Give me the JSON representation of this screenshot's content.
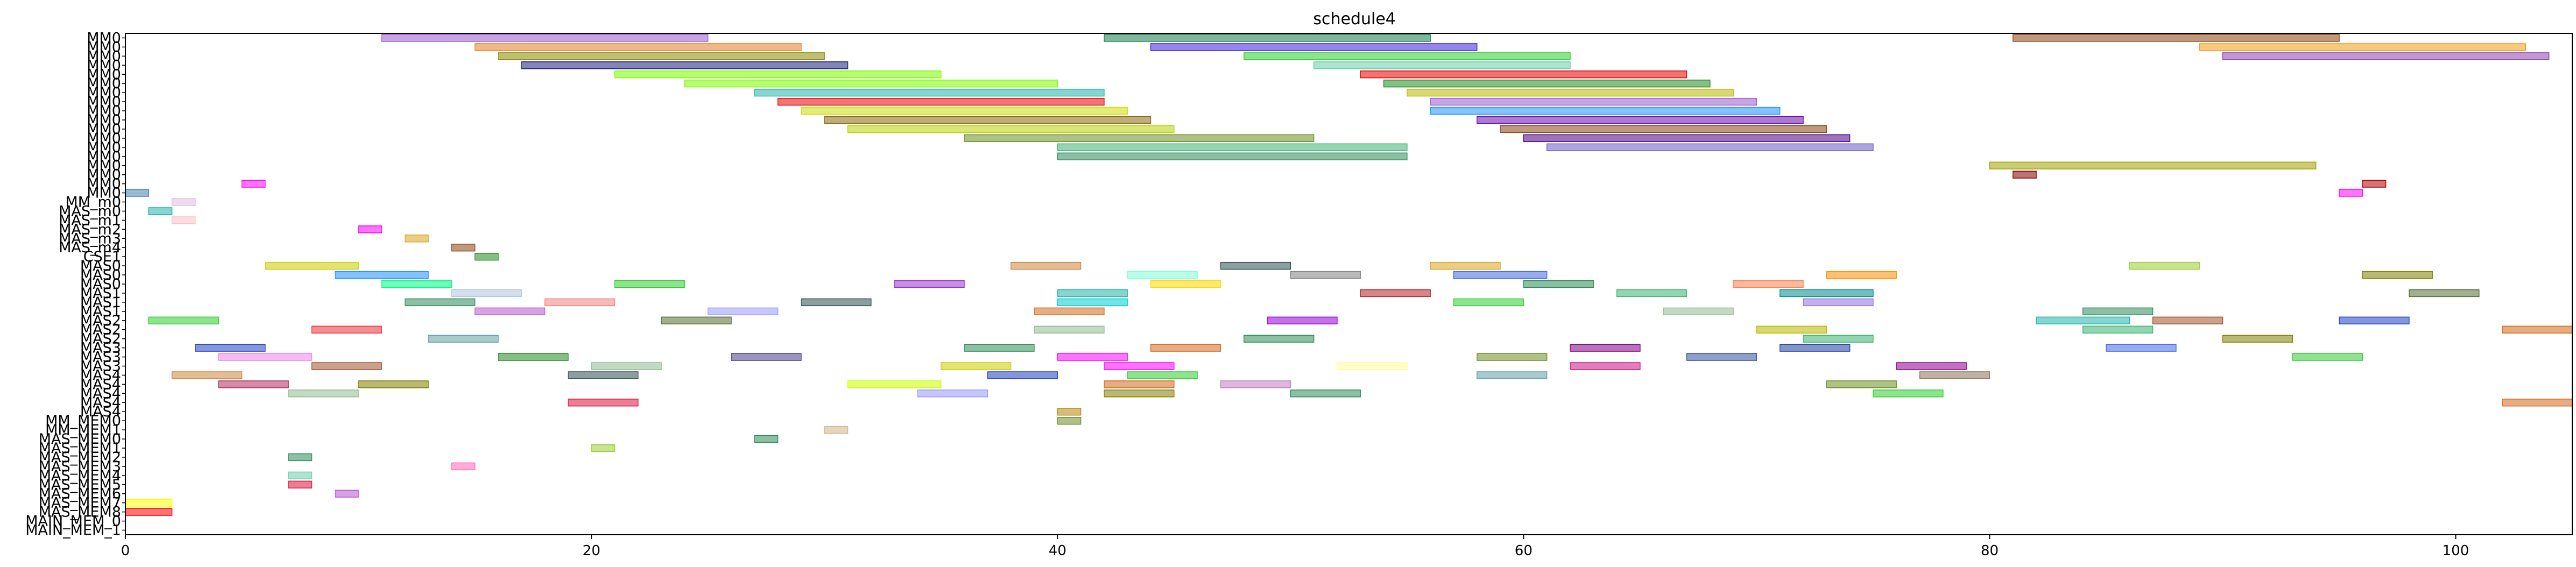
{
  "chart_data": {
    "type": "gantt",
    "title": "schedule4",
    "xlabel": "",
    "ylabel": "",
    "xlim": [
      0,
      105
    ],
    "xticks": [
      0,
      20,
      40,
      60,
      80,
      100
    ],
    "grid": false,
    "legend": "none",
    "rows": [
      "MM0",
      "MM0",
      "MM0",
      "MM0",
      "MM0",
      "MM0",
      "MM0",
      "MM0",
      "MM0",
      "MM0",
      "MM0",
      "MM0",
      "MM0",
      "MM0",
      "MM0",
      "MM0",
      "MM0",
      "MM0",
      "MM_m0",
      "MAS_m0",
      "MAS_m1",
      "MAS_m2",
      "MAS_m3",
      "MAS_m4",
      "CSE1",
      "MAS0",
      "MAS0",
      "MAS0",
      "MAS1",
      "MAS1",
      "MAS1",
      "MAS2",
      "MAS2",
      "MAS2",
      "MAS3",
      "MAS3",
      "MAS3",
      "MAS4",
      "MAS4",
      "MAS4",
      "MAS4",
      "MAS4",
      "MM_MEM0",
      "MM_MEM1",
      "MAS_MEM0",
      "MAS_MEM1",
      "MAS_MEM2",
      "MAS_MEM3",
      "MAS_MEM4",
      "MAS_MEM5",
      "MAS_MEM6",
      "MAS_MEM7",
      "MAS_MEM8",
      "MAIN_MEM_0",
      "MAIN_MEM_1"
    ],
    "tasks": [
      {
        "row": 0,
        "start": 11,
        "end": 25,
        "color": "#9b59d0"
      },
      {
        "row": 0,
        "start": 42,
        "end": 56,
        "color": "#1a7a50"
      },
      {
        "row": 0,
        "start": 81,
        "end": 95,
        "color": "#8b4513"
      },
      {
        "row": 1,
        "start": 15,
        "end": 29,
        "color": "#e67e22"
      },
      {
        "row": 1,
        "start": 44,
        "end": 58,
        "color": "#3b1fe0"
      },
      {
        "row": 1,
        "start": 89,
        "end": 103,
        "color": "#f39c12"
      },
      {
        "row": 2,
        "start": 16,
        "end": 30,
        "color": "#8b8b00"
      },
      {
        "row": 2,
        "start": 48,
        "end": 62,
        "color": "#32cd32"
      },
      {
        "row": 2,
        "start": 90,
        "end": 104,
        "color": "#8e44ad"
      },
      {
        "row": 3,
        "start": 17,
        "end": 31,
        "color": "#1f1f7a"
      },
      {
        "row": 3,
        "start": 51,
        "end": 62,
        "color": "#66cdaa"
      },
      {
        "row": 4,
        "start": 21,
        "end": 35,
        "color": "#7cfc00"
      },
      {
        "row": 4,
        "start": 53,
        "end": 67,
        "color": "#e60000"
      },
      {
        "row": 5,
        "start": 24,
        "end": 40,
        "color": "#7cfc00"
      },
      {
        "row": 5,
        "start": 54,
        "end": 68,
        "color": "#228b22"
      },
      {
        "row": 6,
        "start": 27,
        "end": 42,
        "color": "#20b2aa"
      },
      {
        "row": 6,
        "start": 55,
        "end": 69,
        "color": "#b8b800"
      },
      {
        "row": 7,
        "start": 28,
        "end": 42,
        "color": "#e60000"
      },
      {
        "row": 7,
        "start": 56,
        "end": 70,
        "color": "#9b59d0"
      },
      {
        "row": 8,
        "start": 29,
        "end": 43,
        "color": "#ccdd00"
      },
      {
        "row": 8,
        "start": 56,
        "end": 71,
        "color": "#1e90ff"
      },
      {
        "row": 9,
        "start": 30,
        "end": 44,
        "color": "#8b6914"
      },
      {
        "row": 9,
        "start": 58,
        "end": 72,
        "color": "#6a0dad"
      },
      {
        "row": 10,
        "start": 31,
        "end": 45,
        "color": "#b8d400"
      },
      {
        "row": 10,
        "start": 59,
        "end": 73,
        "color": "#8b4513"
      },
      {
        "row": 11,
        "start": 36,
        "end": 51,
        "color": "#6b8e23"
      },
      {
        "row": 11,
        "start": 60,
        "end": 74,
        "color": "#4b0082"
      },
      {
        "row": 12,
        "start": 40,
        "end": 55,
        "color": "#3cb371"
      },
      {
        "row": 12,
        "start": 61,
        "end": 75,
        "color": "#6a5acd"
      },
      {
        "row": 13,
        "start": 40,
        "end": 55,
        "color": "#2e8b57"
      },
      {
        "row": 14,
        "start": 80,
        "end": 94,
        "color": "#a0a000"
      },
      {
        "row": 15,
        "start": 81,
        "end": 82,
        "color": "#800000"
      },
      {
        "row": 16,
        "start": 5,
        "end": 6,
        "color": "#ff00ff"
      },
      {
        "row": 16,
        "start": 96,
        "end": 97,
        "color": "#b00000"
      },
      {
        "row": 17,
        "start": 0,
        "end": 1,
        "color": "#4682b4"
      },
      {
        "row": 17,
        "start": 95,
        "end": 96,
        "color": "#ff00ff"
      },
      {
        "row": 18,
        "start": 2,
        "end": 3,
        "color": "#e0c0e0"
      },
      {
        "row": 19,
        "start": 1,
        "end": 2,
        "color": "#20b2aa"
      },
      {
        "row": 20,
        "start": 2,
        "end": 3,
        "color": "#ffc0cb"
      },
      {
        "row": 21,
        "start": 10,
        "end": 11,
        "color": "#ff00ff"
      },
      {
        "row": 22,
        "start": 12,
        "end": 13,
        "color": "#daa520"
      },
      {
        "row": 23,
        "start": 14,
        "end": 15,
        "color": "#8b4513"
      },
      {
        "row": 24,
        "start": 15,
        "end": 16,
        "color": "#228b22"
      },
      {
        "row": 25,
        "start": 6,
        "end": 10,
        "color": "#cccc00"
      },
      {
        "row": 25,
        "start": 38,
        "end": 41,
        "color": "#cd853f"
      },
      {
        "row": 25,
        "start": 47,
        "end": 50,
        "color": "#2f4f4f"
      },
      {
        "row": 25,
        "start": 56,
        "end": 59,
        "color": "#daa520"
      },
      {
        "row": 25,
        "start": 86,
        "end": 89,
        "color": "#9acd32"
      },
      {
        "row": 26,
        "start": 9,
        "end": 13,
        "color": "#1e90ff"
      },
      {
        "row": 26,
        "start": 43,
        "end": 46,
        "color": "#7fffd4"
      },
      {
        "row": 26,
        "start": 50,
        "end": 53,
        "color": "#808080"
      },
      {
        "row": 26,
        "start": 57,
        "end": 61,
        "color": "#4169e1"
      },
      {
        "row": 26,
        "start": 73,
        "end": 76,
        "color": "#ff8c00"
      },
      {
        "row": 26,
        "start": 96,
        "end": 99,
        "color": "#808000"
      },
      {
        "row": 27,
        "start": 11,
        "end": 14,
        "color": "#00ff7f"
      },
      {
        "row": 27,
        "start": 21,
        "end": 24,
        "color": "#32cd32"
      },
      {
        "row": 27,
        "start": 33,
        "end": 36,
        "color": "#9932cc"
      },
      {
        "row": 27,
        "start": 44,
        "end": 47,
        "color": "#ffd700"
      },
      {
        "row": 27,
        "start": 60,
        "end": 63,
        "color": "#2e8b57"
      },
      {
        "row": 27,
        "start": 69,
        "end": 72,
        "color": "#ff7f50"
      },
      {
        "row": 28,
        "start": 14,
        "end": 17,
        "color": "#b0c4de"
      },
      {
        "row": 28,
        "start": 40,
        "end": 43,
        "color": "#20b2aa"
      },
      {
        "row": 28,
        "start": 53,
        "end": 56,
        "color": "#b22222"
      },
      {
        "row": 28,
        "start": 64,
        "end": 67,
        "color": "#3cb371"
      },
      {
        "row": 28,
        "start": 71,
        "end": 75,
        "color": "#008b8b"
      },
      {
        "row": 28,
        "start": 98,
        "end": 101,
        "color": "#556b2f"
      },
      {
        "row": 29,
        "start": 12,
        "end": 15,
        "color": "#2e8b57"
      },
      {
        "row": 29,
        "start": 18,
        "end": 21,
        "color": "#f08080"
      },
      {
        "row": 29,
        "start": 29,
        "end": 32,
        "color": "#2f4f4f"
      },
      {
        "row": 29,
        "start": 40,
        "end": 43,
        "color": "#00ced1"
      },
      {
        "row": 29,
        "start": 57,
        "end": 60,
        "color": "#32cd32"
      },
      {
        "row": 29,
        "start": 72,
        "end": 75,
        "color": "#9370db"
      },
      {
        "row": 30,
        "start": 15,
        "end": 18,
        "color": "#ba55d3"
      },
      {
        "row": 30,
        "start": 25,
        "end": 28,
        "color": "#9999ff"
      },
      {
        "row": 30,
        "start": 39,
        "end": 42,
        "color": "#d2691e"
      },
      {
        "row": 30,
        "start": 66,
        "end": 69,
        "color": "#8fbc8f"
      },
      {
        "row": 30,
        "start": 84,
        "end": 87,
        "color": "#2e8b57"
      },
      {
        "row": 31,
        "start": 1,
        "end": 4,
        "color": "#32cd32"
      },
      {
        "row": 31,
        "start": 23,
        "end": 26,
        "color": "#556b2f"
      },
      {
        "row": 31,
        "start": 49,
        "end": 52,
        "color": "#9400d3"
      },
      {
        "row": 31,
        "start": 82,
        "end": 86,
        "color": "#20b2aa"
      },
      {
        "row": 31,
        "start": 87,
        "end": 90,
        "color": "#a0522d"
      },
      {
        "row": 31,
        "start": 95,
        "end": 98,
        "color": "#1f3fbf"
      },
      {
        "row": 32,
        "start": 8,
        "end": 11,
        "color": "#e9333b"
      },
      {
        "row": 32,
        "start": 39,
        "end": 42,
        "color": "#8fbc8f"
      },
      {
        "row": 32,
        "start": 70,
        "end": 73,
        "color": "#b8b800"
      },
      {
        "row": 32,
        "start": 84,
        "end": 87,
        "color": "#3cb371"
      },
      {
        "row": 32,
        "start": 102,
        "end": 105,
        "color": "#d2691e"
      },
      {
        "row": 33,
        "start": 13,
        "end": 16,
        "color": "#5f9ea0"
      },
      {
        "row": 33,
        "start": 48,
        "end": 51,
        "color": "#2e8b57"
      },
      {
        "row": 33,
        "start": 72,
        "end": 75,
        "color": "#3cb371"
      },
      {
        "row": 33,
        "start": 90,
        "end": 93,
        "color": "#808000"
      },
      {
        "row": 34,
        "start": 3,
        "end": 6,
        "color": "#1f3fbf"
      },
      {
        "row": 34,
        "start": 36,
        "end": 39,
        "color": "#2e8b57"
      },
      {
        "row": 34,
        "start": 44,
        "end": 47,
        "color": "#d2691e"
      },
      {
        "row": 34,
        "start": 62,
        "end": 65,
        "color": "#800080"
      },
      {
        "row": 34,
        "start": 71,
        "end": 74,
        "color": "#1e3f9f"
      },
      {
        "row": 34,
        "start": 85,
        "end": 88,
        "color": "#4169e1"
      },
      {
        "row": 35,
        "start": 4,
        "end": 8,
        "color": "#ee82ee"
      },
      {
        "row": 35,
        "start": 16,
        "end": 19,
        "color": "#228b22"
      },
      {
        "row": 35,
        "start": 26,
        "end": 29,
        "color": "#483d8b"
      },
      {
        "row": 35,
        "start": 40,
        "end": 43,
        "color": "#ff00ff"
      },
      {
        "row": 35,
        "start": 58,
        "end": 61,
        "color": "#6b8e23"
      },
      {
        "row": 35,
        "start": 67,
        "end": 70,
        "color": "#2f4f9f"
      },
      {
        "row": 35,
        "start": 93,
        "end": 96,
        "color": "#32cd32"
      },
      {
        "row": 36,
        "start": 8,
        "end": 11,
        "color": "#a0522d"
      },
      {
        "row": 36,
        "start": 20,
        "end": 23,
        "color": "#8fbc8f"
      },
      {
        "row": 36,
        "start": 35,
        "end": 38,
        "color": "#cccc00"
      },
      {
        "row": 36,
        "start": 42,
        "end": 45,
        "color": "#ff00ff"
      },
      {
        "row": 36,
        "start": 52,
        "end": 55,
        "color": "#ffff99"
      },
      {
        "row": 36,
        "start": 62,
        "end": 65,
        "color": "#c71585"
      },
      {
        "row": 36,
        "start": 76,
        "end": 79,
        "color": "#8b008b"
      },
      {
        "row": 37,
        "start": 2,
        "end": 5,
        "color": "#cd853f"
      },
      {
        "row": 37,
        "start": 19,
        "end": 22,
        "color": "#2f4f4f"
      },
      {
        "row": 37,
        "start": 37,
        "end": 40,
        "color": "#1f3fbf"
      },
      {
        "row": 37,
        "start": 43,
        "end": 46,
        "color": "#32cd32"
      },
      {
        "row": 37,
        "start": 58,
        "end": 61,
        "color": "#5f9ea0"
      },
      {
        "row": 37,
        "start": 77,
        "end": 80,
        "color": "#8b7355"
      },
      {
        "row": 38,
        "start": 4,
        "end": 7,
        "color": "#b03060"
      },
      {
        "row": 38,
        "start": 10,
        "end": 13,
        "color": "#808000"
      },
      {
        "row": 38,
        "start": 31,
        "end": 35,
        "color": "#ccff00"
      },
      {
        "row": 38,
        "start": 42,
        "end": 45,
        "color": "#d2691e"
      },
      {
        "row": 38,
        "start": 47,
        "end": 50,
        "color": "#c080c0"
      },
      {
        "row": 38,
        "start": 73,
        "end": 76,
        "color": "#6b8e23"
      },
      {
        "row": 39,
        "start": 7,
        "end": 10,
        "color": "#8fbc8f"
      },
      {
        "row": 39,
        "start": 34,
        "end": 37,
        "color": "#9999ff"
      },
      {
        "row": 39,
        "start": 42,
        "end": 45,
        "color": "#808000"
      },
      {
        "row": 39,
        "start": 50,
        "end": 53,
        "color": "#2e8b57"
      },
      {
        "row": 39,
        "start": 75,
        "end": 78,
        "color": "#32cd32"
      },
      {
        "row": 40,
        "start": 19,
        "end": 22,
        "color": "#dc143c"
      },
      {
        "row": 40,
        "start": 102,
        "end": 105,
        "color": "#d2691e"
      },
      {
        "row": 41,
        "start": 40,
        "end": 41,
        "color": "#b8860b"
      },
      {
        "row": 42,
        "start": 40,
        "end": 41,
        "color": "#6b8e23"
      },
      {
        "row": 43,
        "start": 30,
        "end": 31,
        "color": "#d2b48c"
      },
      {
        "row": 44,
        "start": 27,
        "end": 28,
        "color": "#2e8b57"
      },
      {
        "row": 45,
        "start": 20,
        "end": 21,
        "color": "#9acd32"
      },
      {
        "row": 46,
        "start": 7,
        "end": 8,
        "color": "#2e8b57"
      },
      {
        "row": 47,
        "start": 14,
        "end": 15,
        "color": "#ff69b4"
      },
      {
        "row": 48,
        "start": 7,
        "end": 8,
        "color": "#66cdaa"
      },
      {
        "row": 49,
        "start": 7,
        "end": 8,
        "color": "#dc143c"
      },
      {
        "row": 50,
        "start": 9,
        "end": 10,
        "color": "#ba55d3"
      },
      {
        "row": 51,
        "start": 0,
        "end": 2,
        "color": "#ffff00"
      },
      {
        "row": 52,
        "start": 0,
        "end": 2,
        "color": "#ff0000"
      }
    ]
  }
}
